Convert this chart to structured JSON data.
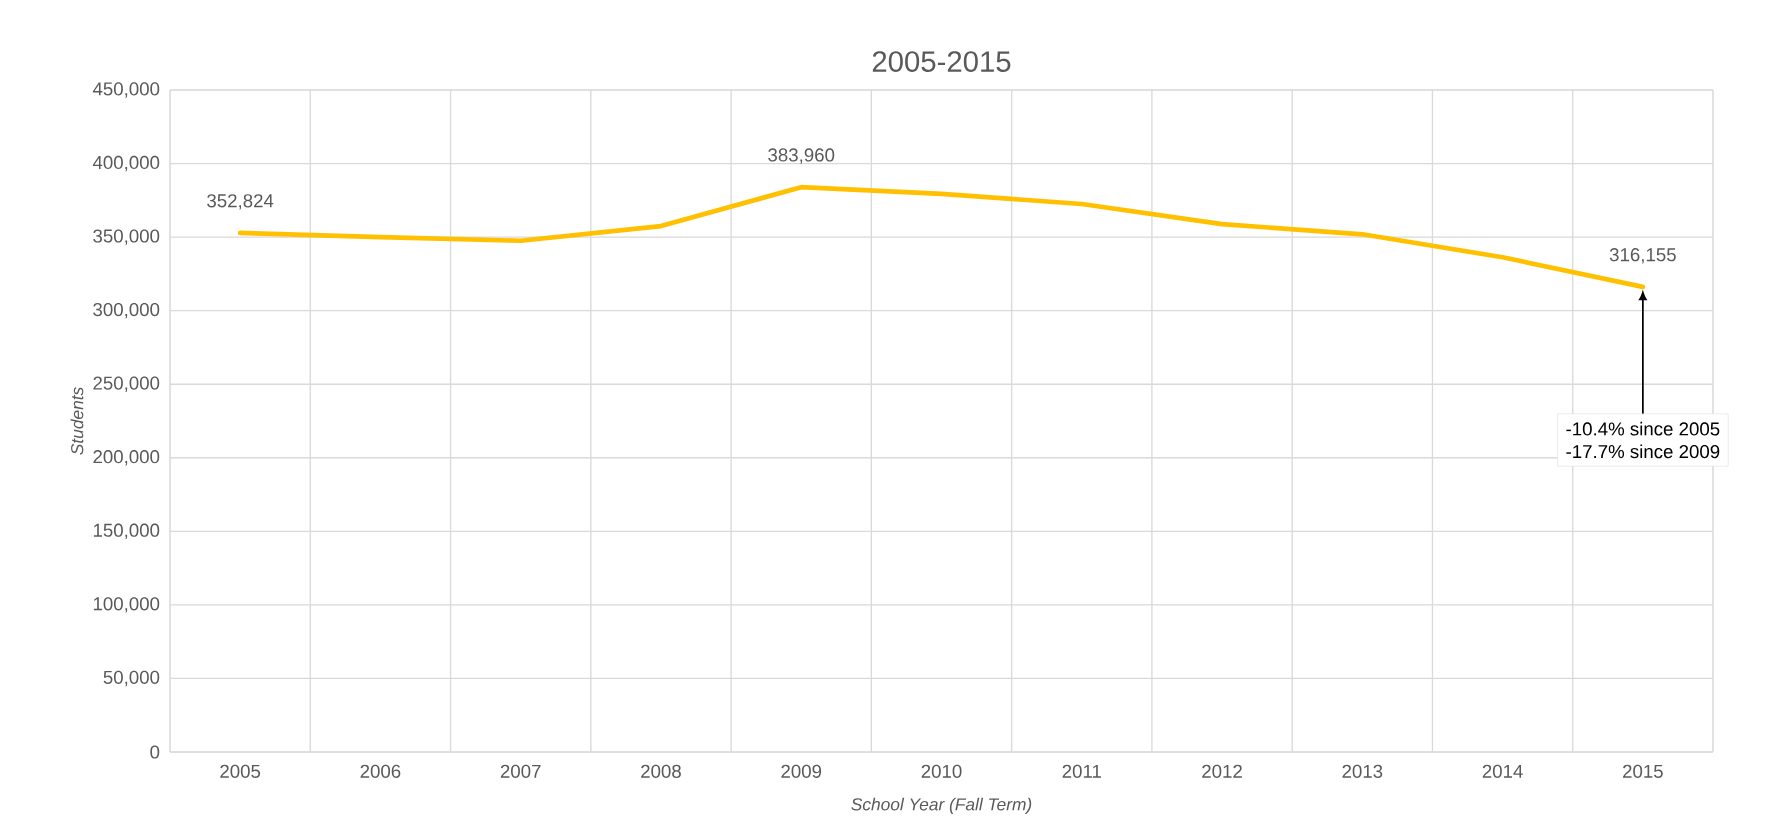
{
  "chart_data": {
    "type": "line",
    "title": "2005-2015",
    "xlabel": "School Year (Fall Term)",
    "ylabel": "Students",
    "categories": [
      "2005",
      "2006",
      "2007",
      "2008",
      "2009",
      "2010",
      "2011",
      "2012",
      "2013",
      "2014",
      "2015"
    ],
    "series": [
      {
        "color": "#ffc000",
        "values": [
          352824,
          350000,
          347500,
          357500,
          383960,
          379400,
          372500,
          358800,
          351900,
          336300,
          316155
        ],
        "value_labels": [
          "352,824",
          null,
          null,
          null,
          "383,960",
          null,
          null,
          null,
          null,
          null,
          "316,155"
        ]
      }
    ],
    "ylim": [
      0,
      450000
    ],
    "yticks": [
      {
        "value": 0,
        "label": "0"
      },
      {
        "value": 50000,
        "label": "50,000"
      },
      {
        "value": 100000,
        "label": "100,000"
      },
      {
        "value": 150000,
        "label": "150,000"
      },
      {
        "value": 200000,
        "label": "200,000"
      },
      {
        "value": 250000,
        "label": "250,000"
      },
      {
        "value": 300000,
        "label": "300,000"
      },
      {
        "value": 350000,
        "label": "350,000"
      },
      {
        "value": 400000,
        "label": "400,000"
      },
      {
        "value": 450000,
        "label": "450,000"
      }
    ],
    "annotations": [
      "-10.4% since 2005",
      "-17.7% since 2009"
    ],
    "grid": true,
    "marker": "none",
    "line_style": "solid"
  }
}
